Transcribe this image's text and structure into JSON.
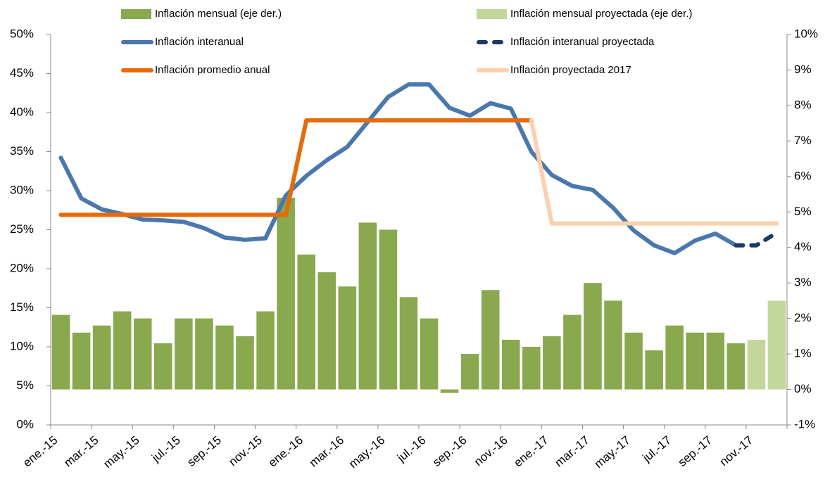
{
  "chart_data": {
    "type": "combo",
    "categories": [
      "ene.-15",
      null,
      "mar.-15",
      null,
      "may.-15",
      null,
      "jul.-15",
      null,
      "sep.-15",
      null,
      "nov.-15",
      null,
      "ene.-16",
      null,
      "mar.-16",
      null,
      "may.-16",
      null,
      "jul.-16",
      null,
      "sep.-16",
      null,
      "nov.-16",
      null,
      "ene.-17",
      null,
      "mar.-17",
      null,
      "may.-17",
      null,
      "jul.-17",
      null,
      "sep.-17",
      null,
      "nov.-17",
      null
    ],
    "ylim": [
      0,
      50
    ],
    "yticks": [
      {
        "value": 0,
        "label": "0%"
      },
      {
        "value": 5,
        "label": "5%"
      },
      {
        "value": 10,
        "label": "10%"
      },
      {
        "value": 15,
        "label": "15%"
      },
      {
        "value": 20,
        "label": "20%"
      },
      {
        "value": 25,
        "label": "25%"
      },
      {
        "value": 30,
        "label": "30%"
      },
      {
        "value": 35,
        "label": "35%"
      },
      {
        "value": 40,
        "label": "40%"
      },
      {
        "value": 45,
        "label": "45%"
      },
      {
        "value": 50,
        "label": "50%"
      }
    ],
    "y2lim": [
      -1,
      10
    ],
    "y2ticks": [
      {
        "value": -1,
        "label": "-1%"
      },
      {
        "value": 0,
        "label": "0%"
      },
      {
        "value": 1,
        "label": "1%"
      },
      {
        "value": 2,
        "label": "2%"
      },
      {
        "value": 3,
        "label": "3%"
      },
      {
        "value": 4,
        "label": "4%"
      },
      {
        "value": 5,
        "label": "5%"
      },
      {
        "value": 6,
        "label": "6%"
      },
      {
        "value": 7,
        "label": "7%"
      },
      {
        "value": 8,
        "label": "8%"
      },
      {
        "value": 9,
        "label": "9%"
      },
      {
        "value": 10,
        "label": "10%"
      }
    ],
    "series": [
      {
        "name": "Inflación mensual (eje der.)",
        "type": "bar",
        "axis": "y2",
        "color": "#8aa84e",
        "values": [
          2.1,
          1.6,
          1.8,
          2.2,
          2.0,
          1.3,
          2.0,
          2.0,
          1.8,
          1.5,
          2.2,
          5.4,
          3.8,
          3.3,
          2.9,
          4.7,
          4.5,
          2.6,
          2.0,
          -0.1,
          1.0,
          2.8,
          1.4,
          1.2,
          1.5,
          2.1,
          3.0,
          2.5,
          1.6,
          1.1,
          1.8,
          1.6,
          1.6,
          1.3,
          null,
          null
        ]
      },
      {
        "name": "Inflación mensual proyectada (eje der.)",
        "type": "bar",
        "axis": "y2",
        "color": "#c4d79b",
        "values": [
          null,
          null,
          null,
          null,
          null,
          null,
          null,
          null,
          null,
          null,
          null,
          null,
          null,
          null,
          null,
          null,
          null,
          null,
          null,
          null,
          null,
          null,
          null,
          null,
          null,
          null,
          null,
          null,
          null,
          null,
          null,
          null,
          null,
          null,
          1.4,
          2.5
        ]
      },
      {
        "name": "Inflación interanual",
        "type": "line",
        "color": "#4a77ae",
        "values": [
          34.2,
          29.0,
          27.6,
          27.0,
          26.3,
          26.2,
          26.0,
          25.2,
          24.0,
          23.7,
          23.9,
          29.4,
          31.9,
          33.9,
          35.6,
          38.8,
          42.0,
          43.6,
          43.6,
          40.6,
          39.6,
          41.2,
          40.5,
          35.0,
          32.0,
          30.6,
          30.1,
          27.8,
          24.9,
          23.0,
          22.0,
          23.6,
          24.5,
          23.0,
          null,
          null
        ]
      },
      {
        "name": "Inflación interanual proyectada",
        "type": "line",
        "dashed": true,
        "color": "#1f3864",
        "values": [
          null,
          null,
          null,
          null,
          null,
          null,
          null,
          null,
          null,
          null,
          null,
          null,
          null,
          null,
          null,
          null,
          null,
          null,
          null,
          null,
          null,
          null,
          null,
          null,
          null,
          null,
          null,
          null,
          null,
          null,
          null,
          null,
          null,
          23.0,
          23.0,
          24.6
        ]
      },
      {
        "name": "Inflación promedio anual",
        "type": "line",
        "color": "#e46c0a",
        "values": [
          26.9,
          26.9,
          26.9,
          26.9,
          26.9,
          26.9,
          26.9,
          26.9,
          26.9,
          26.9,
          26.9,
          26.9,
          39.0,
          39.0,
          39.0,
          39.0,
          39.0,
          39.0,
          39.0,
          39.0,
          39.0,
          39.0,
          39.0,
          39.0,
          null,
          null,
          null,
          null,
          null,
          null,
          null,
          null,
          null,
          null,
          null,
          null
        ]
      },
      {
        "name": "Inflación proyectada 2017",
        "type": "line",
        "color": "#fbd0ae",
        "values": [
          null,
          null,
          null,
          null,
          null,
          null,
          null,
          null,
          null,
          null,
          null,
          null,
          null,
          null,
          null,
          null,
          null,
          null,
          null,
          null,
          null,
          null,
          null,
          39.0,
          25.8,
          25.8,
          25.8,
          25.8,
          25.8,
          25.8,
          25.8,
          25.8,
          25.8,
          25.8,
          25.8,
          25.8
        ]
      }
    ]
  }
}
